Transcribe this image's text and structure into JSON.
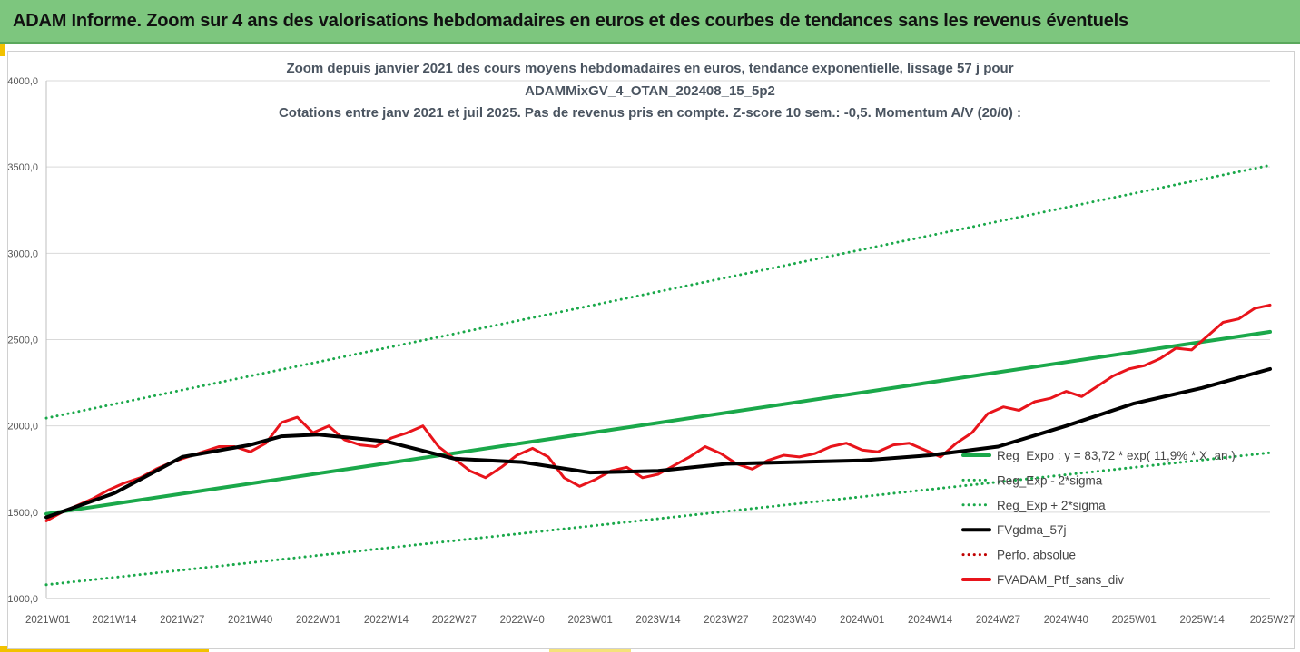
{
  "header": {
    "title": "ADAM Informe. Zoom sur 4 ans des valorisations hebdomadaires en euros et des courbes de tendances sans les revenus éventuels"
  },
  "chart_data": {
    "type": "line",
    "title_lines": [
      "Zoom depuis janvier 2021 des cours moyens hebdomadaires  en euros, tendance exponentielle, lissage 57 j pour",
      "ADAMMixGV_4_OTAN_202408_15_5p2",
      "Cotations entre janv 2021 et juil 2025. Pas de revenus pris en compte. Z-score 10 sem.: -0,5. Momentum A/V (20/0) :"
    ],
    "xlabel": "",
    "ylabel": "",
    "x_ticks": [
      "2021W01",
      "2021W14",
      "2021W27",
      "2021W40",
      "2022W01",
      "2022W14",
      "2022W27",
      "2022W40",
      "2023W01",
      "2023W14",
      "2023W27",
      "2023W40",
      "2024W01",
      "2024W14",
      "2024W27",
      "2024W40",
      "2025W01",
      "2025W14",
      "2025W27"
    ],
    "y_ticks": [
      "1000,0",
      "1500,0",
      "2000,0",
      "2500,0",
      "3000,0",
      "3500,0",
      "4000,0"
    ],
    "y_tick_values": [
      1000,
      1500,
      2000,
      2500,
      3000,
      3500,
      4000
    ],
    "ylim": [
      1000,
      4000
    ],
    "grid": "horizontal",
    "legend_position": "bottom-right",
    "colors": {
      "trend": "#1aa84a",
      "smooth": "#000000",
      "price": "#e8141b",
      "perf": "#c00000"
    },
    "series": [
      {
        "name": "Reg_Expo : y = 83,72 * exp( 11,9% *  X_an )",
        "style": "solid",
        "color": "#1aa84a",
        "x": [
          0,
          234
        ],
        "values": [
          1490,
          2545
        ]
      },
      {
        "name": "Reg_Exp - 2*sigma",
        "style": "dotted",
        "color": "#1aa84a",
        "x": [
          0,
          234
        ],
        "values": [
          1080,
          1845
        ]
      },
      {
        "name": "Reg_Exp + 2*sigma",
        "style": "dotted",
        "color": "#1aa84a",
        "x": [
          0,
          234
        ],
        "values": [
          2045,
          3510
        ]
      },
      {
        "name": "FVgdma_57j",
        "style": "solid",
        "color": "#000000",
        "x": [
          0,
          13,
          26,
          39,
          45,
          52,
          65,
          78,
          91,
          104,
          117,
          130,
          143,
          156,
          169,
          182,
          195,
          208,
          221,
          234
        ],
        "values": [
          1470,
          1610,
          1820,
          1890,
          1940,
          1950,
          1910,
          1810,
          1790,
          1730,
          1740,
          1780,
          1790,
          1800,
          1830,
          1880,
          2000,
          2130,
          2220,
          2330
        ]
      },
      {
        "name": "Perfo. absolue",
        "style": "dotted",
        "color": "#c00000",
        "x": [],
        "values": []
      },
      {
        "name": "FVADAM_Ptf_sans_div",
        "style": "solid",
        "color": "#e8141b",
        "x": [
          0,
          3,
          6,
          9,
          12,
          15,
          18,
          21,
          24,
          27,
          30,
          33,
          36,
          39,
          42,
          45,
          48,
          51,
          54,
          57,
          60,
          63,
          66,
          69,
          72,
          75,
          78,
          81,
          84,
          87,
          90,
          93,
          96,
          99,
          102,
          105,
          108,
          111,
          114,
          117,
          120,
          123,
          126,
          129,
          132,
          135,
          138,
          141,
          144,
          147,
          150,
          153,
          156,
          159,
          162,
          165,
          168,
          171,
          174,
          177,
          180,
          183,
          186,
          189,
          192,
          195,
          198,
          201,
          204,
          207,
          210,
          213,
          216,
          219,
          222,
          225,
          228,
          231,
          234
        ],
        "values": [
          1450,
          1500,
          1540,
          1580,
          1630,
          1670,
          1700,
          1750,
          1790,
          1820,
          1850,
          1880,
          1880,
          1850,
          1900,
          2020,
          2050,
          1960,
          2000,
          1920,
          1890,
          1880,
          1930,
          1960,
          2000,
          1880,
          1810,
          1740,
          1700,
          1760,
          1830,
          1870,
          1820,
          1700,
          1650,
          1690,
          1740,
          1760,
          1700,
          1720,
          1770,
          1820,
          1880,
          1840,
          1780,
          1750,
          1800,
          1830,
          1820,
          1840,
          1880,
          1900,
          1860,
          1850,
          1890,
          1900,
          1860,
          1820,
          1900,
          1960,
          2070,
          2110,
          2090,
          2140,
          2160,
          2200,
          2170,
          2230,
          2290,
          2330,
          2350,
          2390,
          2450,
          2440,
          2520,
          2600,
          2620,
          2680,
          2700
        ]
      }
    ]
  }
}
